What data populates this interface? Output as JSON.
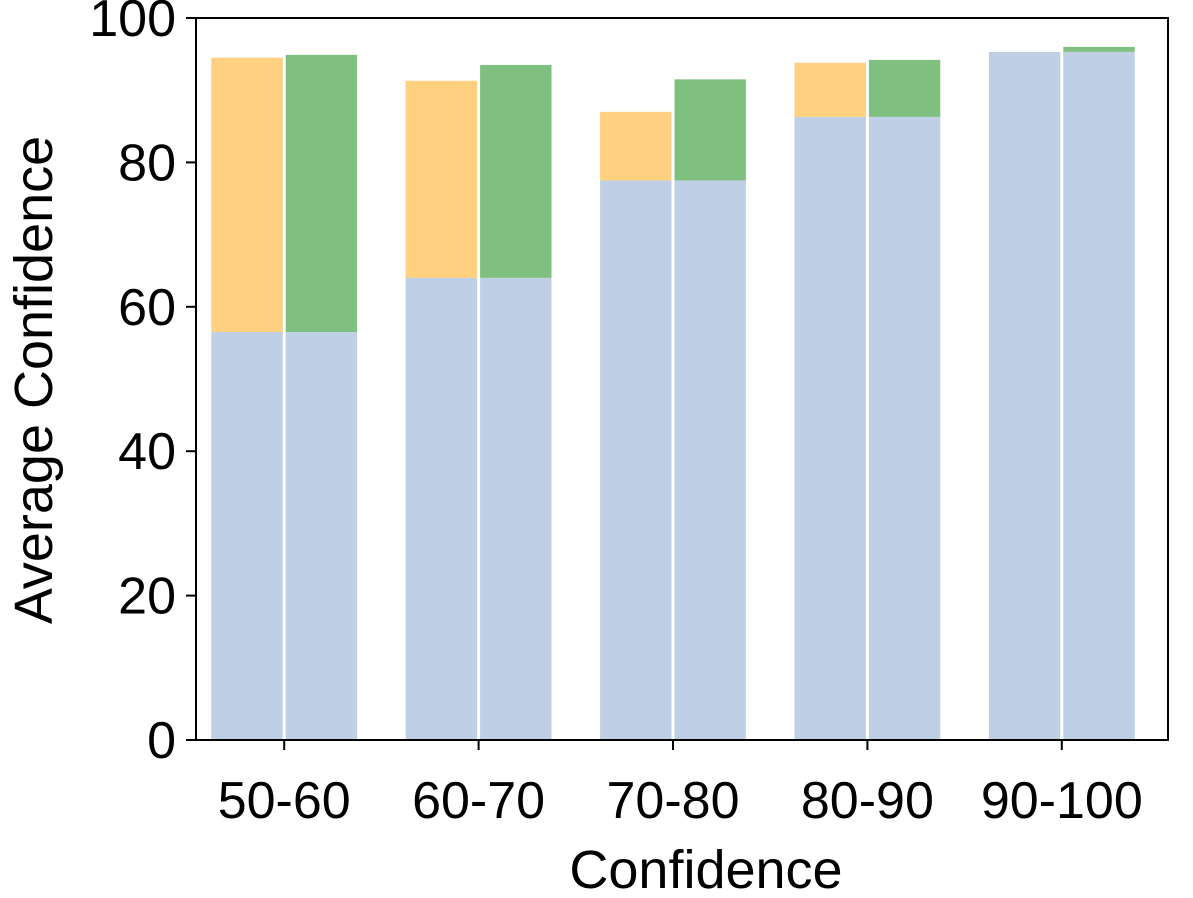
{
  "chart_data": {
    "type": "bar",
    "xlabel": "Confidence",
    "ylabel": "Average Confidence",
    "ylim": [
      0,
      100
    ],
    "yticks": [
      0,
      20,
      40,
      60,
      80,
      100
    ],
    "categories": [
      "50-60",
      "60-70",
      "70-80",
      "80-90",
      "90-100"
    ],
    "grid": false,
    "legend": "none",
    "base_values": [
      56.5,
      64,
      77.5,
      86.3,
      95.3
    ],
    "series": [
      {
        "values": [
          94.5,
          91.3,
          87.0,
          93.8,
          95.3
        ],
        "color": "#FED07F"
      },
      {
        "values": [
          94.9,
          93.5,
          91.5,
          94.2,
          96.0
        ],
        "color": "#7FBF7F"
      }
    ],
    "base_color": "#BFCFE5",
    "colors": {
      "axis": "#000000",
      "background": "#ffffff",
      "bar_separator": "#ffffff"
    }
  }
}
